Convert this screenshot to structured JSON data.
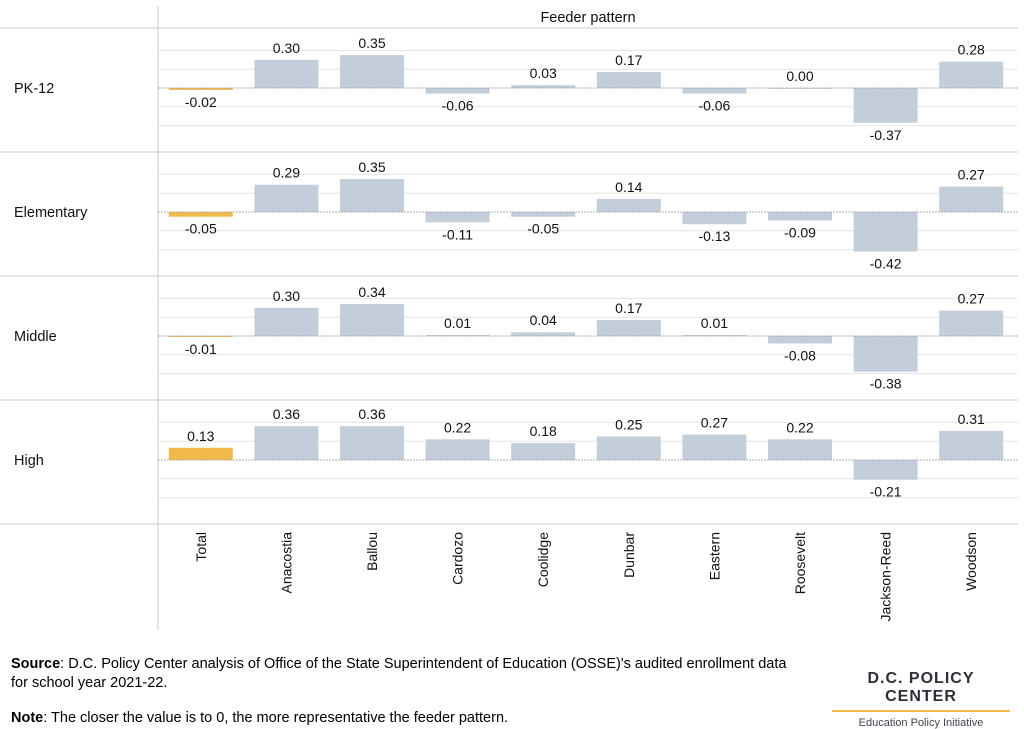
{
  "chart_data": {
    "type": "bar",
    "column_header": "Feeder pattern",
    "rows": [
      "PK-12",
      "Elementary",
      "Middle",
      "High"
    ],
    "categories": [
      "Total",
      "Anacostia",
      "Ballou",
      "Cardozo",
      "Coolidge",
      "Dunbar",
      "Eastern",
      "Roosevelt",
      "Jackson-Reed",
      "Woodson"
    ],
    "values": [
      [
        -0.02,
        0.3,
        0.35,
        -0.06,
        0.03,
        0.17,
        -0.06,
        0.0,
        -0.37,
        0.28
      ],
      [
        -0.05,
        0.29,
        0.35,
        -0.11,
        -0.05,
        0.14,
        -0.13,
        -0.09,
        -0.42,
        0.27
      ],
      [
        -0.01,
        0.3,
        0.34,
        0.01,
        0.04,
        0.17,
        0.01,
        -0.08,
        -0.38,
        0.27
      ],
      [
        0.13,
        0.36,
        0.36,
        0.22,
        0.18,
        0.25,
        0.27,
        0.22,
        -0.21,
        0.31
      ]
    ],
    "labels": [
      [
        "-0.02",
        "0.30",
        "0.35",
        "-0.06",
        "0.03",
        "0.17",
        "-0.06",
        "0.00",
        "-0.37",
        "0.28"
      ],
      [
        "-0.05",
        "0.29",
        "0.35",
        "-0.11",
        "-0.05",
        "0.14",
        "-0.13",
        "-0.09",
        "-0.42",
        "0.27"
      ],
      [
        "-0.01",
        "0.30",
        "0.34",
        "0.01",
        "0.04",
        "0.17",
        "0.01",
        "-0.08",
        "-0.38",
        "0.27"
      ],
      [
        "0.13",
        "0.36",
        "0.36",
        "0.22",
        "0.18",
        "0.25",
        "0.27",
        "0.22",
        "-0.21",
        "0.31"
      ]
    ],
    "highlight_category": "Total",
    "colors": {
      "highlight": "#f0b94a",
      "bar": "#c3ceda",
      "grid": "#e3e3e3",
      "zero_line": "#999999",
      "border": "#c8c8c8"
    },
    "grid": true,
    "legend": "none"
  },
  "footer": {
    "source_label": "Source",
    "source_text": ": D.C. Policy Center analysis of Office of the State Superintendent of Education (OSSE)'s audited enrollment data for school year 2021-22.",
    "note_label": "Note",
    "note_text": ": The closer the value is to 0, the more representative the feeder pattern."
  },
  "brand": {
    "name": "D.C. POLICY CENTER",
    "subtitle": "Education Policy Initiative"
  }
}
